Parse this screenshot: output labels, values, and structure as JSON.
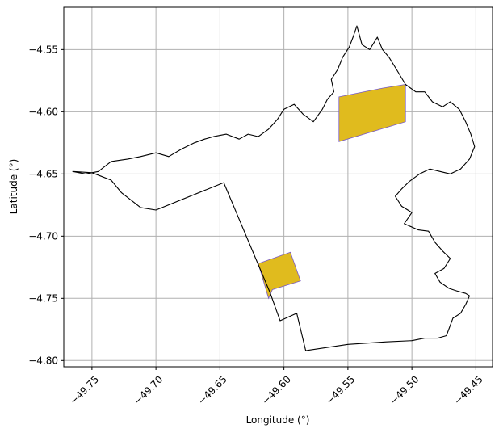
{
  "chart_data": {
    "type": "map",
    "xlabel": "Longitude (°)",
    "ylabel": "Latitude (°)",
    "xlim": [
      -49.772,
      -49.437
    ],
    "ylim": [
      -4.805,
      -4.516
    ],
    "x_ticks": [
      -49.75,
      -49.7,
      -49.65,
      -49.6,
      -49.55,
      -49.5,
      -49.45
    ],
    "x_tick_labels": [
      "−49.75",
      "−49.70",
      "−49.65",
      "−49.60",
      "−49.55",
      "−49.50",
      "−49.45"
    ],
    "y_ticks": [
      -4.55,
      -4.6,
      -4.65,
      -4.7,
      -4.75,
      -4.8
    ],
    "y_tick_labels": [
      "−4.55",
      "−4.60",
      "−4.65",
      "−4.70",
      "−4.75",
      "−4.80"
    ],
    "grid": true,
    "colors": {
      "boundary_outline": "#000000",
      "highlighted_area_fill": "#e0bb1e",
      "highlighted_area_edge": "#7a5cc4",
      "grid": "#b0b0b0"
    },
    "boundary": [
      [
        -49.765,
        -4.648
      ],
      [
        -49.755,
        -4.65
      ],
      [
        -49.745,
        -4.648
      ],
      [
        -49.735,
        -4.64
      ],
      [
        -49.722,
        -4.638
      ],
      [
        -49.712,
        -4.636
      ],
      [
        -49.7,
        -4.633
      ],
      [
        -49.69,
        -4.636
      ],
      [
        -49.68,
        -4.63
      ],
      [
        -49.67,
        -4.625
      ],
      [
        -49.662,
        -4.622
      ],
      [
        -49.655,
        -4.62
      ],
      [
        -49.645,
        -4.618
      ],
      [
        -49.635,
        -4.622
      ],
      [
        -49.628,
        -4.618
      ],
      [
        -49.62,
        -4.62
      ],
      [
        -49.612,
        -4.614
      ],
      [
        -49.605,
        -4.606
      ],
      [
        -49.6,
        -4.598
      ],
      [
        -49.592,
        -4.594
      ],
      [
        -49.585,
        -4.602
      ],
      [
        -49.577,
        -4.608
      ],
      [
        -49.57,
        -4.598
      ],
      [
        -49.566,
        -4.59
      ],
      [
        -49.561,
        -4.584
      ],
      [
        -49.563,
        -4.574
      ],
      [
        -49.558,
        -4.566
      ],
      [
        -49.554,
        -4.556
      ],
      [
        -49.549,
        -4.548
      ],
      [
        -49.546,
        -4.54
      ],
      [
        -49.543,
        -4.531
      ],
      [
        -49.539,
        -4.546
      ],
      [
        -49.533,
        -4.55
      ],
      [
        -49.527,
        -4.54
      ],
      [
        -49.523,
        -4.55
      ],
      [
        -49.518,
        -4.556
      ],
      [
        -49.512,
        -4.566
      ],
      [
        -49.505,
        -4.578
      ],
      [
        -49.497,
        -4.584
      ],
      [
        -49.49,
        -4.584
      ],
      [
        -49.484,
        -4.592
      ],
      [
        -49.476,
        -4.596
      ],
      [
        -49.47,
        -4.592
      ],
      [
        -49.463,
        -4.598
      ],
      [
        -49.458,
        -4.608
      ],
      [
        -49.454,
        -4.618
      ],
      [
        -49.451,
        -4.628
      ],
      [
        -49.455,
        -4.638
      ],
      [
        -49.462,
        -4.646
      ],
      [
        -49.47,
        -4.65
      ],
      [
        -49.478,
        -4.648
      ],
      [
        -49.486,
        -4.646
      ],
      [
        -49.494,
        -4.65
      ],
      [
        -49.502,
        -4.656
      ],
      [
        -49.508,
        -4.662
      ],
      [
        -49.513,
        -4.668
      ],
      [
        -49.508,
        -4.676
      ],
      [
        -49.5,
        -4.681
      ],
      [
        -49.506,
        -4.69
      ],
      [
        -49.495,
        -4.695
      ],
      [
        -49.487,
        -4.696
      ],
      [
        -49.482,
        -4.705
      ],
      [
        -49.476,
        -4.712
      ],
      [
        -49.47,
        -4.718
      ],
      [
        -49.475,
        -4.726
      ],
      [
        -49.482,
        -4.73
      ],
      [
        -49.478,
        -4.737
      ],
      [
        -49.471,
        -4.742
      ],
      [
        -49.465,
        -4.744
      ],
      [
        -49.458,
        -4.746
      ],
      [
        -49.455,
        -4.748
      ],
      [
        -49.458,
        -4.755
      ],
      [
        -49.462,
        -4.762
      ],
      [
        -49.468,
        -4.766
      ],
      [
        -49.473,
        -4.78
      ],
      [
        -49.48,
        -4.782
      ],
      [
        -49.49,
        -4.782
      ],
      [
        -49.5,
        -4.784
      ],
      [
        -49.52,
        -4.785
      ],
      [
        -49.55,
        -4.787
      ],
      [
        -49.583,
        -4.792
      ],
      [
        -49.59,
        -4.762
      ],
      [
        -49.603,
        -4.768
      ],
      [
        -49.611,
        -4.745
      ],
      [
        -49.647,
        -4.657
      ],
      [
        -49.7,
        -4.679
      ],
      [
        -49.712,
        -4.677
      ],
      [
        -49.727,
        -4.665
      ],
      [
        -49.735,
        -4.655
      ],
      [
        -49.75,
        -4.649
      ],
      [
        -49.765,
        -4.648
      ]
    ],
    "highlighted_areas": [
      [
        [
          -49.557,
          -4.588
        ],
        [
          -49.523,
          -4.581
        ],
        [
          -49.505,
          -4.578
        ],
        [
          -49.505,
          -4.608
        ],
        [
          -49.557,
          -4.624
        ]
      ],
      [
        [
          -49.62,
          -4.722
        ],
        [
          -49.595,
          -4.713
        ],
        [
          -49.587,
          -4.736
        ],
        [
          -49.609,
          -4.743
        ],
        [
          -49.612,
          -4.75
        ]
      ]
    ]
  }
}
